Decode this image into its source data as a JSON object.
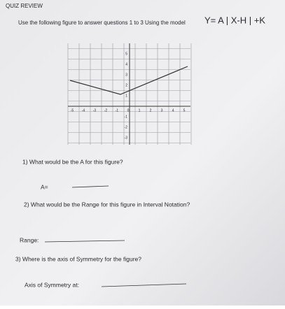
{
  "header": {
    "title": "QUIZ REVIEW"
  },
  "instructions": {
    "text": "Use the following figure to answer questions 1 to 3 Using the model",
    "model": "Y= A | X-H | +K"
  },
  "figure": {
    "x_labels": [
      -5,
      -4,
      -3,
      -2,
      -1,
      0,
      1,
      2,
      3,
      4,
      5
    ],
    "y_labels": [
      5,
      4,
      3,
      2,
      1,
      -1,
      -2,
      -3
    ]
  },
  "questions": [
    {
      "text": "1) What would be the A for this figure?",
      "answer_label": "A="
    },
    {
      "text": "2) What would be the Range for this figure in Interval Notation?",
      "answer_label": "Range:"
    },
    {
      "text": "3) Where is the axis of Symmetry for the figure?",
      "answer_label": "Axis of Symmetry at:"
    }
  ]
}
